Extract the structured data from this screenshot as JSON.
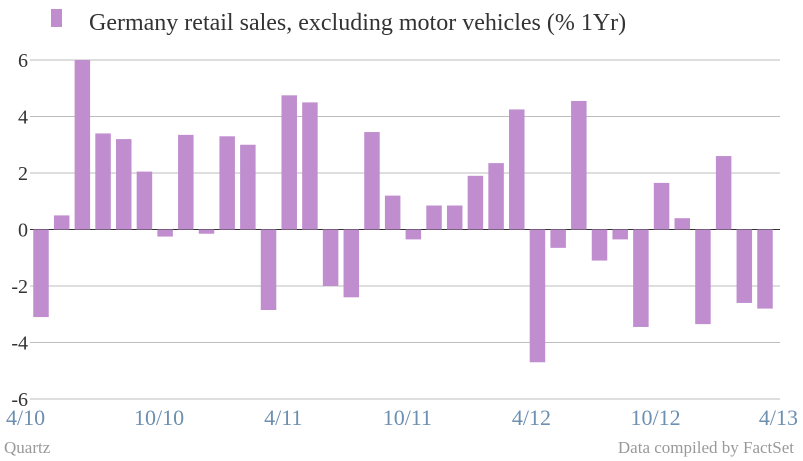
{
  "chart_data": {
    "type": "bar",
    "series": [
      {
        "name": "Germany retail sales, excluding motor vehicles (% 1Yr)",
        "values": [
          -3.1,
          0.5,
          6.0,
          3.4,
          3.2,
          2.05,
          -0.25,
          3.35,
          -0.15,
          3.3,
          3.0,
          -2.85,
          4.75,
          4.5,
          -2.0,
          -2.4,
          3.45,
          1.2,
          -0.35,
          0.85,
          0.85,
          1.9,
          2.35,
          4.25,
          -4.7,
          -0.65,
          4.55,
          -1.1,
          -0.35,
          -3.45,
          1.65,
          0.4,
          -3.35,
          2.6,
          -2.6,
          -2.8
        ]
      }
    ],
    "x_tick_labels": [
      "4/10",
      "10/10",
      "4/11",
      "10/11",
      "4/12",
      "10/12",
      "4/13"
    ],
    "y_tick_labels": [
      "6",
      "4",
      "2",
      "0",
      "-2",
      "-4",
      "-6"
    ],
    "ylim": [
      -6,
      6
    ],
    "grid": "horizontal",
    "legend_position": "top-left",
    "bar_color": "#c08ecf"
  },
  "footer": {
    "source_left": "Quartz",
    "source_right": "Data compiled by FactSet"
  }
}
